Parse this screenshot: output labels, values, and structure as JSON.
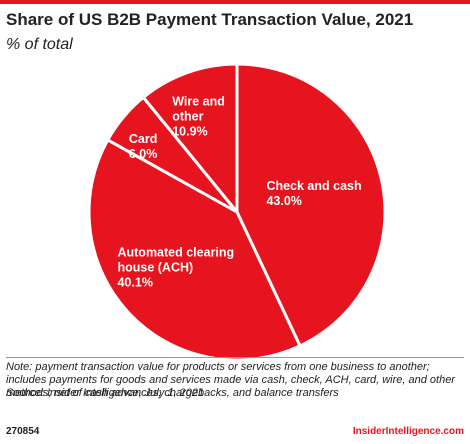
{
  "chart_data": {
    "type": "pie",
    "title": "Share of US B2B Payment Transaction Value, 2021",
    "subtitle": "% of total",
    "categories": [
      "Check and cash",
      "Automated clearing house (ACH)",
      "Card",
      "Wire and other"
    ],
    "values": [
      43.0,
      40.1,
      6.0,
      10.9
    ],
    "value_labels": [
      "43.0%",
      "40.1%",
      "6.0%",
      "10.9%"
    ],
    "color": "#e5141e",
    "note": "Note: payment transaction value for products or services from one business to another; includes payments for goods and services made via cash, check, ACH, card, wire, and other methods; net of cash advances, chargebacks, and balance transfers",
    "source": "Source: Insider Intelligence, July 1, 2021",
    "chart_id": "270854",
    "brand": "InsiderIntelligence.com"
  }
}
